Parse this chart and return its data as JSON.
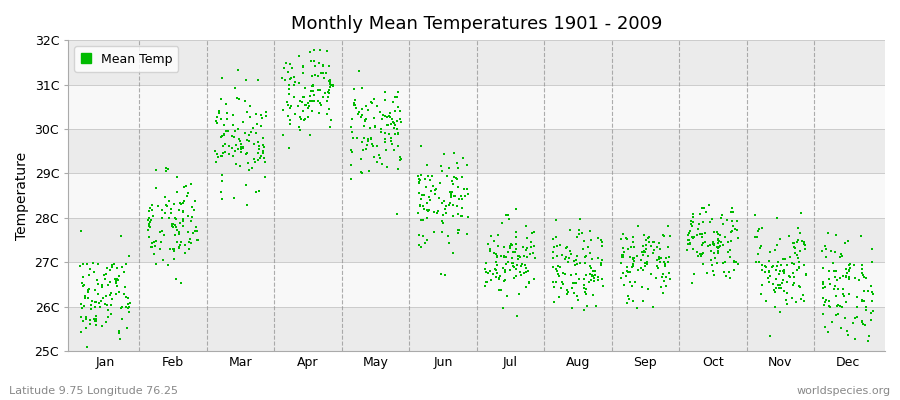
{
  "title": "Monthly Mean Temperatures 1901 - 2009",
  "ylabel": "Temperature",
  "xlabel_bottom_left": "Latitude 9.75 Longitude 76.25",
  "xlabel_bottom_right": "worldspecies.org",
  "legend_label": "Mean Temp",
  "dot_color": "#00bb00",
  "background_color": "#ffffff",
  "plot_bg_even": "#ebebeb",
  "plot_bg_odd": "#f8f8f8",
  "ylim": [
    25.0,
    32.0
  ],
  "yticks": [
    25,
    26,
    27,
    28,
    29,
    30,
    31,
    32
  ],
  "ytick_labels": [
    "25C",
    "26C",
    "27C",
    "28C",
    "29C",
    "30C",
    "31C",
    "32C"
  ],
  "months": [
    "Jan",
    "Feb",
    "Mar",
    "Apr",
    "May",
    "Jun",
    "Jul",
    "Aug",
    "Sep",
    "Oct",
    "Nov",
    "Dec"
  ],
  "month_means": [
    26.2,
    27.8,
    29.8,
    30.9,
    30.0,
    28.3,
    27.1,
    26.8,
    27.0,
    27.5,
    26.9,
    26.4
  ],
  "month_stds": [
    0.55,
    0.6,
    0.55,
    0.5,
    0.55,
    0.55,
    0.45,
    0.45,
    0.45,
    0.45,
    0.55,
    0.6
  ],
  "n_years": 109,
  "seed": 42,
  "dot_size": 3,
  "dashed_line_color": "#999999",
  "grid_line_color": "#cccccc"
}
